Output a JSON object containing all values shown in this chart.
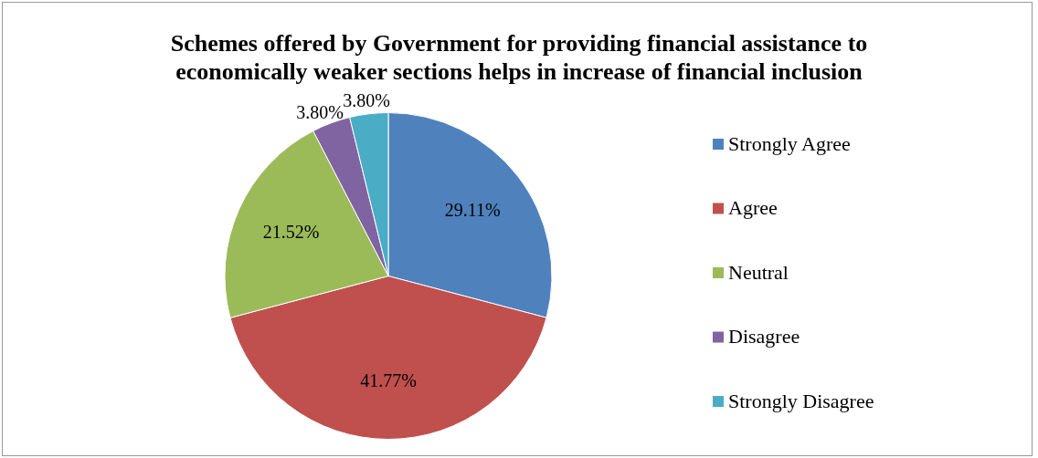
{
  "chart_data": {
    "type": "pie",
    "title": "Schemes offered by Government for providing financial assistance to economically weaker sections helps in increase of financial inclusion",
    "categories": [
      "Strongly Agree",
      "Agree",
      "Neutral",
      "Disagree",
      "Strongly Disagree"
    ],
    "values": [
      29.11,
      41.77,
      21.52,
      3.8,
      3.8
    ],
    "value_labels": [
      "29.11%",
      "41.77%",
      "21.52%",
      "3.80%",
      "3.80%"
    ],
    "colors": [
      "#4f81bd",
      "#c0504d",
      "#9bbb59",
      "#8064a2",
      "#4bacc6"
    ],
    "legend": "right"
  }
}
